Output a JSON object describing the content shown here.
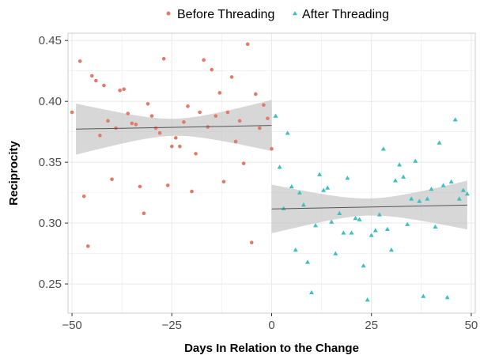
{
  "chart_data": {
    "type": "scatter",
    "xlabel": "Days In Relation to the Change",
    "ylabel": "Reciprocity",
    "xlim": [
      -51,
      51
    ],
    "ylim": [
      0.226,
      0.456
    ],
    "x_ticks": [
      -50,
      -25,
      0,
      25,
      50
    ],
    "x_tick_labels": [
      "−50",
      "−25",
      "0",
      "25",
      "50"
    ],
    "y_ticks": [
      0.25,
      0.3,
      0.35,
      0.4,
      0.45
    ],
    "y_tick_labels": [
      "0.25",
      "0.30",
      "0.35",
      "0.40",
      "0.45"
    ],
    "grid": true,
    "legend_position": "top",
    "series": [
      {
        "name": "Before Threading",
        "color": "#E07B6A",
        "marker": "circle",
        "points": [
          [
            -50,
            0.391
          ],
          [
            -48,
            0.433
          ],
          [
            -47,
            0.322
          ],
          [
            -46,
            0.281
          ],
          [
            -45,
            0.421
          ],
          [
            -44,
            0.417
          ],
          [
            -43,
            0.372
          ],
          [
            -42,
            0.413
          ],
          [
            -41,
            0.384
          ],
          [
            -40,
            0.336
          ],
          [
            -39,
            0.378
          ],
          [
            -38,
            0.409
          ],
          [
            -37,
            0.41
          ],
          [
            -36,
            0.39
          ],
          [
            -35,
            0.382
          ],
          [
            -34,
            0.381
          ],
          [
            -33,
            0.33
          ],
          [
            -32,
            0.308
          ],
          [
            -31,
            0.398
          ],
          [
            -30,
            0.388
          ],
          [
            -29,
            0.378
          ],
          [
            -28,
            0.374
          ],
          [
            -27,
            0.435
          ],
          [
            -26,
            0.331
          ],
          [
            -25,
            0.363
          ],
          [
            -24,
            0.37
          ],
          [
            -23,
            0.363
          ],
          [
            -22,
            0.383
          ],
          [
            -21,
            0.396
          ],
          [
            -20,
            0.326
          ],
          [
            -19,
            0.357
          ],
          [
            -18,
            0.391
          ],
          [
            -17,
            0.434
          ],
          [
            -16,
            0.379
          ],
          [
            -15,
            0.426
          ],
          [
            -14,
            0.388
          ],
          [
            -13,
            0.407
          ],
          [
            -12,
            0.334
          ],
          [
            -11,
            0.391
          ],
          [
            -10,
            0.42
          ],
          [
            -9,
            0.367
          ],
          [
            -8,
            0.384
          ],
          [
            -7,
            0.349
          ],
          [
            -6,
            0.447
          ],
          [
            -5,
            0.284
          ],
          [
            -4,
            0.406
          ],
          [
            -3,
            0.378
          ],
          [
            -2,
            0.397
          ],
          [
            -1,
            0.386
          ],
          [
            0,
            0.361
          ]
        ]
      },
      {
        "name": "After Threading",
        "color": "#3FBFBF",
        "marker": "triangle",
        "points": [
          [
            1,
            0.388
          ],
          [
            2,
            0.346
          ],
          [
            3,
            0.312
          ],
          [
            4,
            0.374
          ],
          [
            5,
            0.33
          ],
          [
            6,
            0.278
          ],
          [
            7,
            0.325
          ],
          [
            8,
            0.315
          ],
          [
            9,
            0.268
          ],
          [
            10,
            0.243
          ],
          [
            11,
            0.298
          ],
          [
            12,
            0.34
          ],
          [
            13,
            0.327
          ],
          [
            14,
            0.329
          ],
          [
            15,
            0.301
          ],
          [
            16,
            0.275
          ],
          [
            17,
            0.308
          ],
          [
            18,
            0.292
          ],
          [
            19,
            0.337
          ],
          [
            20,
            0.292
          ],
          [
            21,
            0.304
          ],
          [
            22,
            0.303
          ],
          [
            23,
            0.265
          ],
          [
            24,
            0.237
          ],
          [
            25,
            0.29
          ],
          [
            26,
            0.294
          ],
          [
            27,
            0.307
          ],
          [
            28,
            0.361
          ],
          [
            29,
            0.295
          ],
          [
            30,
            0.278
          ],
          [
            31,
            0.335
          ],
          [
            32,
            0.348
          ],
          [
            33,
            0.338
          ],
          [
            34,
            0.299
          ],
          [
            35,
            0.32
          ],
          [
            36,
            0.351
          ],
          [
            37,
            0.318
          ],
          [
            38,
            0.24
          ],
          [
            39,
            0.32
          ],
          [
            40,
            0.328
          ],
          [
            41,
            0.297
          ],
          [
            42,
            0.366
          ],
          [
            43,
            0.331
          ],
          [
            44,
            0.239
          ],
          [
            45,
            0.334
          ],
          [
            46,
            0.385
          ],
          [
            47,
            0.32
          ],
          [
            48,
            0.327
          ],
          [
            49,
            0.324
          ]
        ]
      }
    ],
    "fits": [
      {
        "series": "Before Threading",
        "x_range": [
          -49,
          0
        ],
        "intercept": 0.3802,
        "slope": 6.12e-05,
        "ci_half_width_center": 0.007,
        "ci_half_width_edge": 0.021
      },
      {
        "series": "After Threading",
        "x_range": [
          0,
          49
        ],
        "intercept": 0.3116,
        "slope": 6.53e-05,
        "ci_half_width_center": 0.007,
        "ci_half_width_edge": 0.02
      }
    ],
    "fit_line_color": "#555555",
    "ci_fill_color": "#BDBDBD",
    "panel_background": "#FFFFFF",
    "grid_color": "#EBEBEB"
  }
}
